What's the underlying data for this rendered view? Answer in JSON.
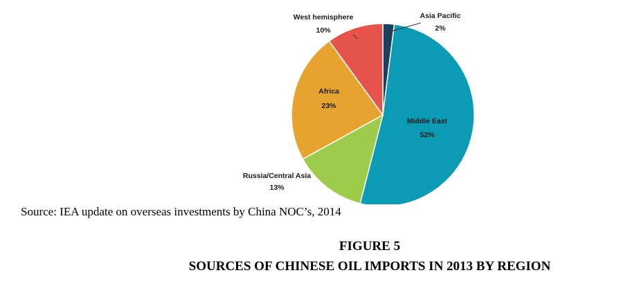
{
  "chart_data": {
    "type": "pie",
    "title": "",
    "slices": [
      {
        "label": "Asia Pacific",
        "value": 2,
        "value_label": "2%",
        "color": "#1b3f5e"
      },
      {
        "label": "Middle East",
        "value": 52,
        "value_label": "52%",
        "color": "#0c9bb5"
      },
      {
        "label": "Russia/Central Asia",
        "value": 13,
        "value_label": "13%",
        "color": "#9ccc4a"
      },
      {
        "label": "Africa",
        "value": 23,
        "value_label": "23%",
        "color": "#e6a42f"
      },
      {
        "label": "West hemisphere",
        "value": 10,
        "value_label": "10%",
        "color": "#e5534a"
      }
    ],
    "start": "12 o'clock",
    "direction": "clockwise"
  },
  "caption": {
    "source": "Source: IEA update on overseas investments by China NOC’s, 2014",
    "figure_number": "FIGURE 5",
    "figure_title": "SOURCES OF CHINESE OIL IMPORTS IN 2013 BY REGION"
  }
}
